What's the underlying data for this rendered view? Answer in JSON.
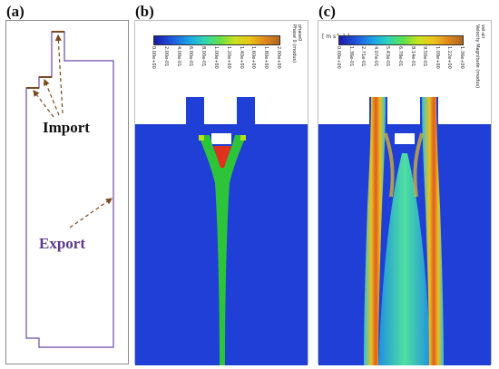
{
  "panels": {
    "a": {
      "label": "(a)",
      "import_label": "Import",
      "export_label": "Export",
      "colors": {
        "outline": "#6a4aa8",
        "arrow": "#7a4a1e",
        "import_text": "#111111",
        "export_text": "#5a3a8a"
      }
    },
    "b": {
      "label": "(b)",
      "legend_title": "phase0",
      "legend_subtitle": "Phase 0 (modus)",
      "ticks": [
        "0.00e+00",
        "2.00e-01",
        "4.00e-01",
        "6.00e-01",
        "8.00e-01",
        "1.00e+00",
        "1.20e+00",
        "1.40e+00",
        "1.60e+00",
        "1.80e+00",
        "2.00e+00"
      ],
      "colors": {
        "background": "#1f3fd6",
        "jet": "#2ec43a",
        "core": "#e0301e"
      }
    },
    "c": {
      "label": "(c)",
      "unit": "[ m s^-1 ]",
      "legend_title": "vel-air",
      "legend_subtitle": "Velocity Magnitude (modus)",
      "ticks": [
        "0.00e+00",
        "1.36e-01",
        "2.71e-01",
        "4.07e-01",
        "5.43e-01",
        "6.78e-01",
        "8.14e-01",
        "9.50e-01",
        "1.09e+00",
        "1.22e+00",
        "1.36e+00"
      ],
      "colors": {
        "background": "#1f3fd6",
        "high": "#e8c020",
        "low": "#2ec0d8"
      }
    }
  }
}
